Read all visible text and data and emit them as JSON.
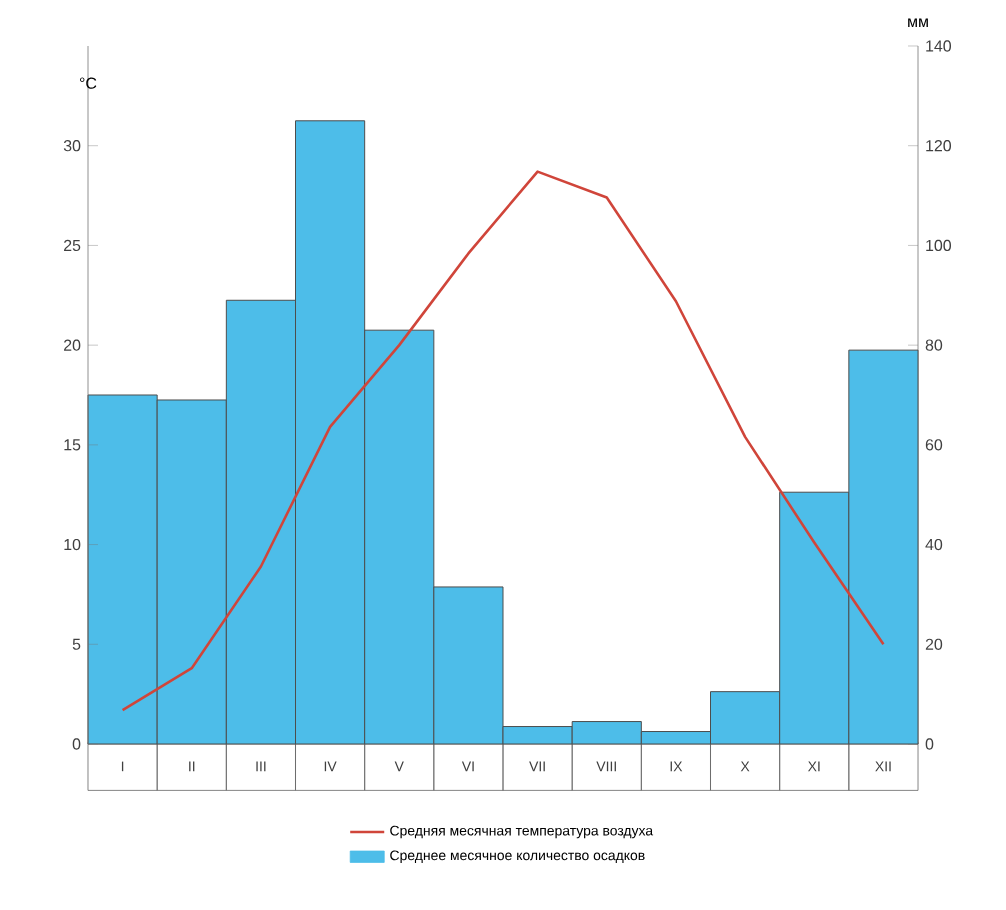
{
  "chart_data": {
    "type": "bar",
    "categories": [
      "I",
      "II",
      "III",
      "IV",
      "V",
      "VI",
      "VII",
      "VIII",
      "IX",
      "X",
      "XI",
      "XII"
    ],
    "series": [
      {
        "name": "Среднее месячное количество осадков",
        "axis": "y2",
        "color": "#4dbde9",
        "values": [
          70,
          69,
          89,
          125,
          83,
          31.5,
          3.5,
          4.5,
          2.5,
          10.5,
          50.5,
          79
        ]
      },
      {
        "name": "Средняя месячная температура воздуха",
        "type": "line",
        "color": "#d0453a",
        "values": [
          1.7,
          3.8,
          8.9,
          15.9,
          20,
          24.6,
          28.7,
          27.4,
          22.2,
          15.4,
          10.1,
          5
        ]
      }
    ],
    "ylabel": "°C",
    "y2label": "мм",
    "ylim": [
      0,
      35
    ],
    "yticks": [
      0,
      5,
      10,
      15,
      20,
      25,
      30
    ],
    "y2lim": [
      0,
      140
    ],
    "y2ticks": [
      0,
      20,
      40,
      60,
      80,
      100,
      120,
      140
    ],
    "legend": "bottom",
    "grid": false
  }
}
